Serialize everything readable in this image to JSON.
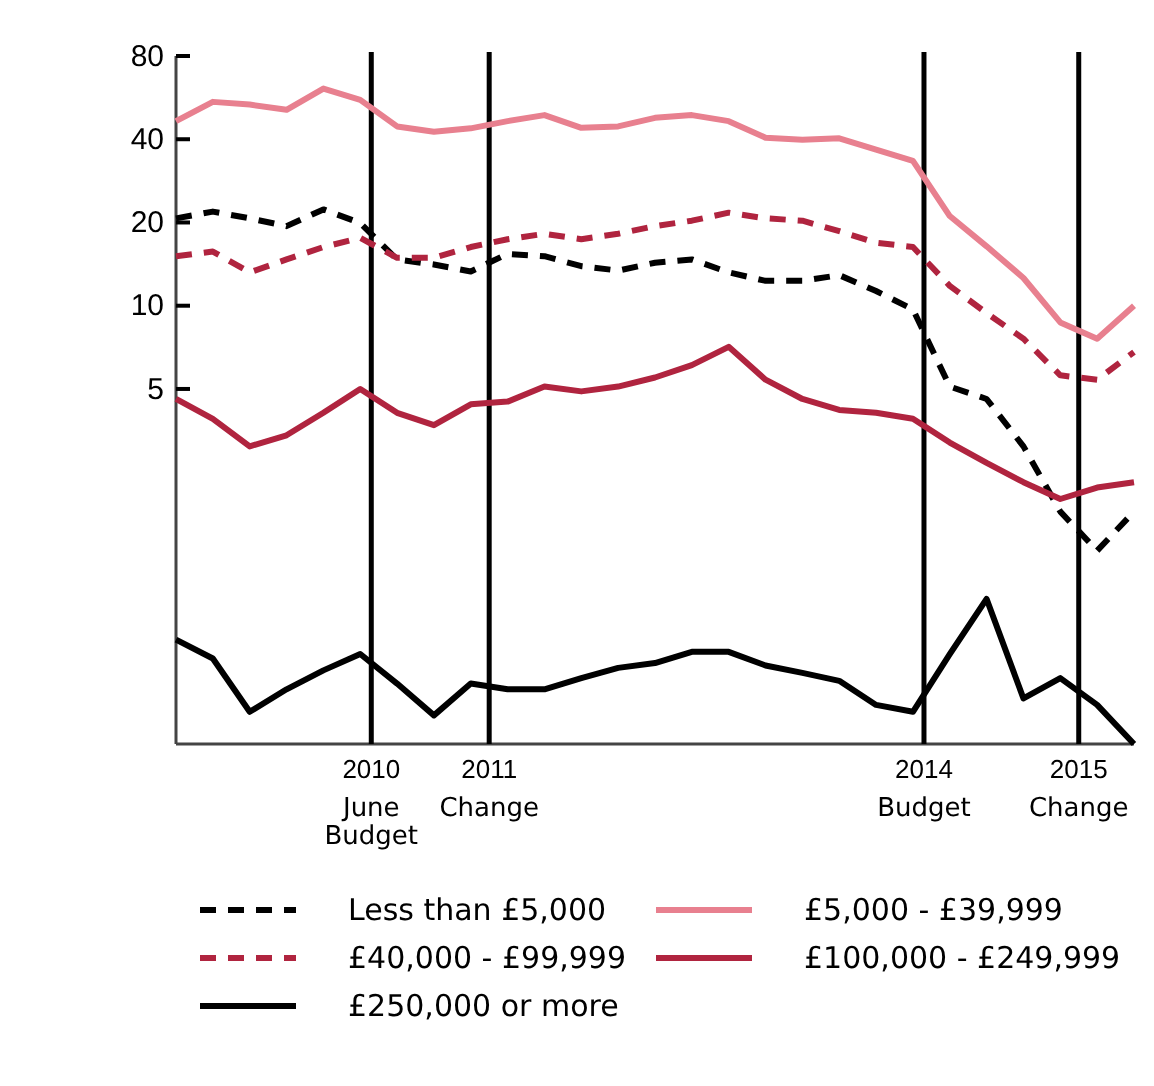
{
  "chart_data": {
    "type": "line",
    "log": "y",
    "legend": "bottom",
    "x": [
      2009.125,
      2009.375,
      2009.625,
      2009.875,
      2010.125,
      2010.375,
      2010.625,
      2010.875,
      2011.125,
      2011.375,
      2011.625,
      2011.875,
      2012.125,
      2012.375,
      2012.625,
      2012.875,
      2013.125,
      2013.375,
      2013.625,
      2013.875,
      2014.125,
      2014.375,
      2014.625,
      2014.875,
      2015.125,
      2015.375,
      2015.625
    ],
    "xlim": [
      2009.125,
      2015.625
    ],
    "xticks": [
      {
        "value": 2010.45,
        "label": "2010"
      },
      {
        "value": 2011.25,
        "label": "2011"
      },
      {
        "value": 2014.2,
        "label": "2014"
      },
      {
        "value": 2015.25,
        "label": "2015"
      }
    ],
    "ylim": [
      0.26,
      80
    ],
    "yticks": [
      5,
      10,
      20,
      40,
      80
    ],
    "ref_lines": [
      {
        "axis": "x",
        "value": 2010.45,
        "label": "June Budget",
        "color": "#000000"
      },
      {
        "axis": "x",
        "value": 2011.25,
        "label": "Change",
        "color": "#000000"
      },
      {
        "axis": "x",
        "value": 2014.2,
        "label": "Budget",
        "color": "#000000"
      },
      {
        "axis": "x",
        "value": 2015.25,
        "label": "Change",
        "color": "#000000"
      }
    ],
    "series": [
      {
        "name": "Less than £5,000",
        "color": "#000000",
        "line_style": "dashed",
        "values": [
          20.7,
          21.9,
          20.7,
          19.4,
          22.3,
          19.9,
          14.7,
          14.1,
          13.3,
          15.4,
          15.1,
          13.9,
          13.4,
          14.3,
          14.7,
          13.2,
          12.3,
          12.3,
          12.9,
          11.3,
          9.7,
          5.1,
          4.6,
          3.1,
          1.8,
          1.3,
          1.8
        ]
      },
      {
        "name": "£5,000 - £39,999",
        "color": "#e8808f",
        "line_style": "solid",
        "values": [
          46.5,
          54.6,
          53.4,
          51.1,
          61,
          55.5,
          44.5,
          42.6,
          43.8,
          46.5,
          48.9,
          44,
          44.5,
          47.8,
          48.9,
          46.5,
          40.5,
          39.8,
          40.3,
          36.7,
          33.4,
          21.1,
          16.4,
          12.6,
          8.7,
          7.6,
          10.0
        ]
      },
      {
        "name": "£40,000 - £99,999",
        "color": "#b0243f",
        "line_style": "dashed",
        "values": [
          15.1,
          15.7,
          13.2,
          14.7,
          16.3,
          17.6,
          14.9,
          14.9,
          16.3,
          17.4,
          18.2,
          17.4,
          18.2,
          19.4,
          20.3,
          21.7,
          20.7,
          20.3,
          18.6,
          16.9,
          16.3,
          11.8,
          9.4,
          7.6,
          5.6,
          5.4,
          6.8
        ]
      },
      {
        "name": "£100,000 - £249,999",
        "color": "#b0243f",
        "line_style": "solid",
        "values": [
          4.6,
          3.9,
          3.1,
          3.4,
          4.1,
          5.0,
          4.1,
          3.7,
          4.4,
          4.5,
          5.1,
          4.9,
          5.1,
          5.5,
          6.1,
          7.1,
          5.4,
          4.6,
          4.2,
          4.1,
          3.9,
          3.2,
          2.7,
          2.3,
          2.0,
          2.2,
          2.3
        ]
      },
      {
        "name": "£250,000 or more",
        "color": "#000000",
        "line_style": "solid",
        "values": [
          0.62,
          0.53,
          0.34,
          0.41,
          0.48,
          0.55,
          0.43,
          0.33,
          0.43,
          0.41,
          0.41,
          0.45,
          0.49,
          0.51,
          0.56,
          0.56,
          0.5,
          0.47,
          0.44,
          0.36,
          0.34,
          0.55,
          0.87,
          0.38,
          0.45,
          0.36,
          0.26
        ]
      }
    ]
  }
}
